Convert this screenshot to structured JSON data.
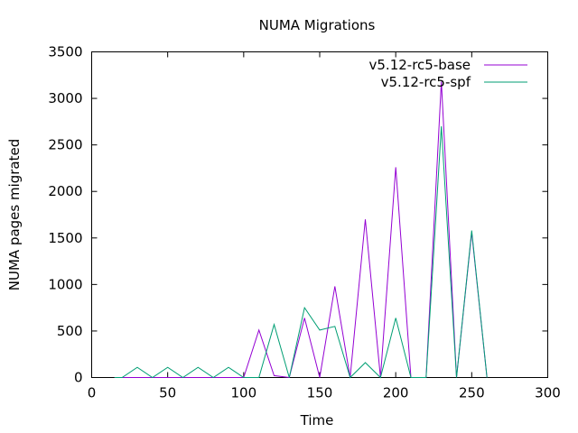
{
  "chart_data": {
    "type": "line",
    "title": "NUMA Migrations",
    "xlabel": "Time",
    "ylabel": "NUMA pages migrated",
    "xlim": [
      0,
      300
    ],
    "ylim": [
      0,
      3500
    ],
    "xticks": [
      0,
      50,
      100,
      150,
      200,
      250,
      300
    ],
    "yticks": [
      0,
      500,
      1000,
      1500,
      2000,
      2500,
      3000,
      3500
    ],
    "grid": false,
    "legend_position": "top-right",
    "series": [
      {
        "name": "v5.12-rc5-base",
        "color": "#9400d3",
        "x": [
          15,
          20,
          30,
          40,
          50,
          60,
          70,
          80,
          90,
          100,
          110,
          120,
          130,
          140,
          150,
          160,
          170,
          180,
          190,
          200,
          210,
          220,
          230,
          240,
          250,
          260
        ],
        "y": [
          0,
          0,
          0,
          0,
          0,
          0,
          0,
          0,
          0,
          0,
          510,
          20,
          0,
          640,
          0,
          980,
          0,
          1700,
          0,
          2260,
          0,
          0,
          3180,
          0,
          1560,
          0
        ]
      },
      {
        "name": "v5.12-rc5-spf",
        "color": "#009e73",
        "x": [
          15,
          20,
          30,
          40,
          50,
          60,
          70,
          80,
          90,
          100,
          110,
          120,
          130,
          140,
          150,
          160,
          170,
          180,
          190,
          200,
          210,
          220,
          230,
          240,
          250,
          260
        ],
        "y": [
          0,
          0,
          110,
          0,
          110,
          0,
          110,
          0,
          110,
          0,
          0,
          570,
          0,
          750,
          510,
          550,
          0,
          160,
          0,
          640,
          0,
          0,
          2700,
          0,
          1580,
          0
        ]
      }
    ]
  }
}
